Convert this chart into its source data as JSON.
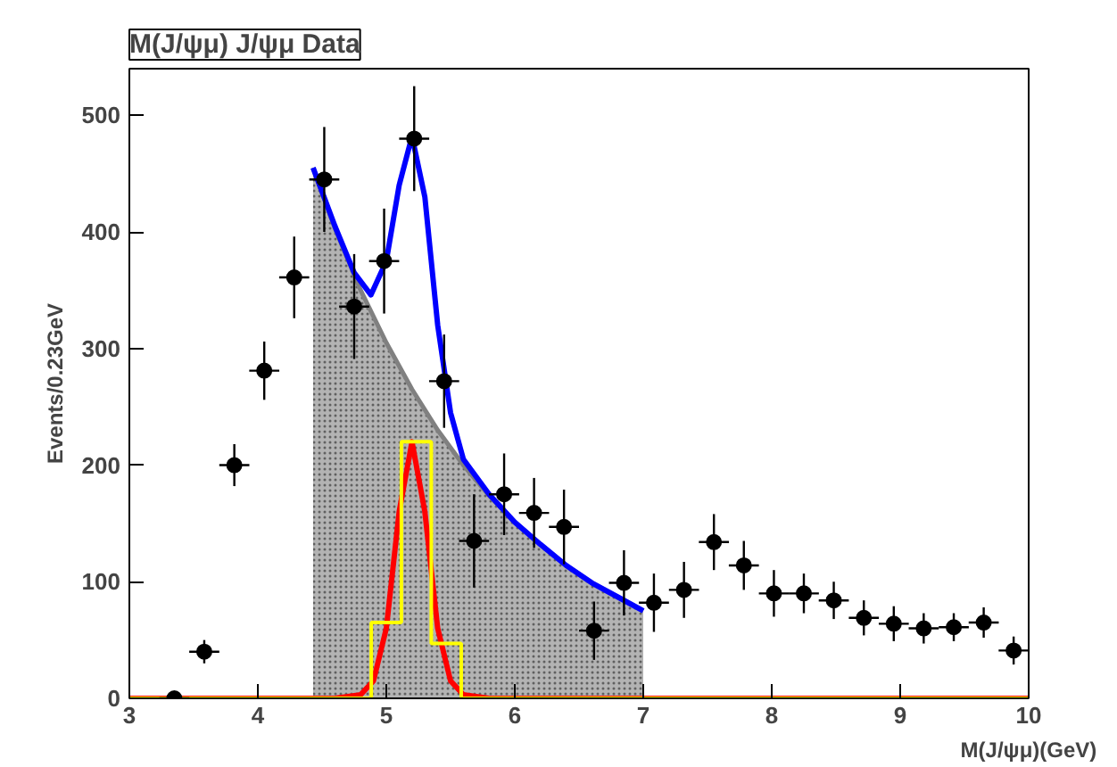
{
  "chart_data": {
    "type": "scatter",
    "title": "M(J/ψμ) J/ψμ Data",
    "xlabel": "M(J/ψμ)(GeV)",
    "ylabel": "Events/0.23GeV",
    "xlim": [
      3,
      10
    ],
    "ylim": [
      0,
      540
    ],
    "xticks": [
      3,
      4,
      5,
      6,
      7,
      8,
      9,
      10
    ],
    "yticks": [
      0,
      100,
      200,
      300,
      400,
      500
    ],
    "grid": false,
    "series": [
      {
        "type": "area",
        "color": "#a0a0a0",
        "x": [
          4.43,
          4.6,
          4.8,
          5.0,
          5.2,
          5.4,
          5.6,
          5.8,
          6.0,
          6.2,
          6.4,
          6.6,
          6.8,
          7.0
        ],
        "values": [
          455,
          403,
          350,
          305,
          265,
          230,
          200,
          174,
          151,
          132,
          114,
          99,
          87,
          75
        ]
      },
      {
        "type": "line",
        "color": "#ff0000",
        "x": [
          3,
          4.6,
          4.8,
          4.9,
          5.0,
          5.1,
          5.2,
          5.3,
          5.4,
          5.5,
          5.6,
          5.8,
          10
        ],
        "values": [
          0,
          0,
          3,
          15,
          60,
          160,
          220,
          160,
          60,
          15,
          3,
          0,
          0
        ]
      },
      {
        "type": "step",
        "color": "#ffff00",
        "x": [
          3,
          4.883,
          5.117,
          5.35,
          5.583,
          10
        ],
        "values": [
          0,
          65,
          220,
          47,
          0,
          0
        ]
      },
      {
        "type": "line",
        "color": "#0000ff",
        "x": [
          4.43,
          4.6,
          4.75,
          4.88,
          5.0,
          5.1,
          5.2,
          5.3,
          5.4,
          5.5,
          5.6,
          5.8,
          6.0,
          6.2,
          6.4,
          6.6,
          6.8,
          7.0
        ],
        "values": [
          455,
          405,
          365,
          346,
          375,
          440,
          482,
          430,
          320,
          245,
          205,
          175,
          151,
          132,
          114,
          99,
          87,
          75
        ]
      },
      {
        "marker": "circle",
        "color": "#000000",
        "x": [
          3.35,
          3.583,
          3.817,
          4.05,
          4.283,
          4.517,
          4.75,
          4.983,
          5.217,
          5.45,
          5.683,
          5.917,
          6.15,
          6.383,
          6.617,
          6.85,
          7.083,
          7.317,
          7.55,
          7.783,
          8.017,
          8.25,
          8.483,
          8.717,
          8.95,
          9.183,
          9.417,
          9.65,
          9.883
        ],
        "values": [
          0,
          40,
          200,
          281,
          361,
          445,
          336,
          375,
          480,
          272,
          135,
          175,
          159,
          147,
          58,
          99,
          82,
          93,
          134,
          114,
          90,
          90,
          84,
          69,
          64,
          60,
          61,
          65,
          41
        ],
        "errors": [
          null,
          10,
          18,
          25,
          35,
          45,
          45,
          45,
          45,
          40,
          40,
          35,
          30,
          32,
          25,
          28,
          25,
          24,
          24,
          21,
          20,
          17,
          16,
          15,
          15,
          13,
          12,
          13,
          12
        ],
        "xerrors": [
          0.117,
          0.117,
          0.117,
          0.117,
          0.117,
          0.117,
          0.117,
          0.117,
          0.117,
          0.117,
          0.117,
          0.117,
          0.117,
          0.117,
          0.117,
          0.117,
          0.117,
          0.117,
          0.117,
          0.117,
          0.117,
          0.117,
          0.117,
          0.117,
          0.117,
          0.117,
          0.117,
          0.117,
          0.117
        ]
      }
    ]
  }
}
